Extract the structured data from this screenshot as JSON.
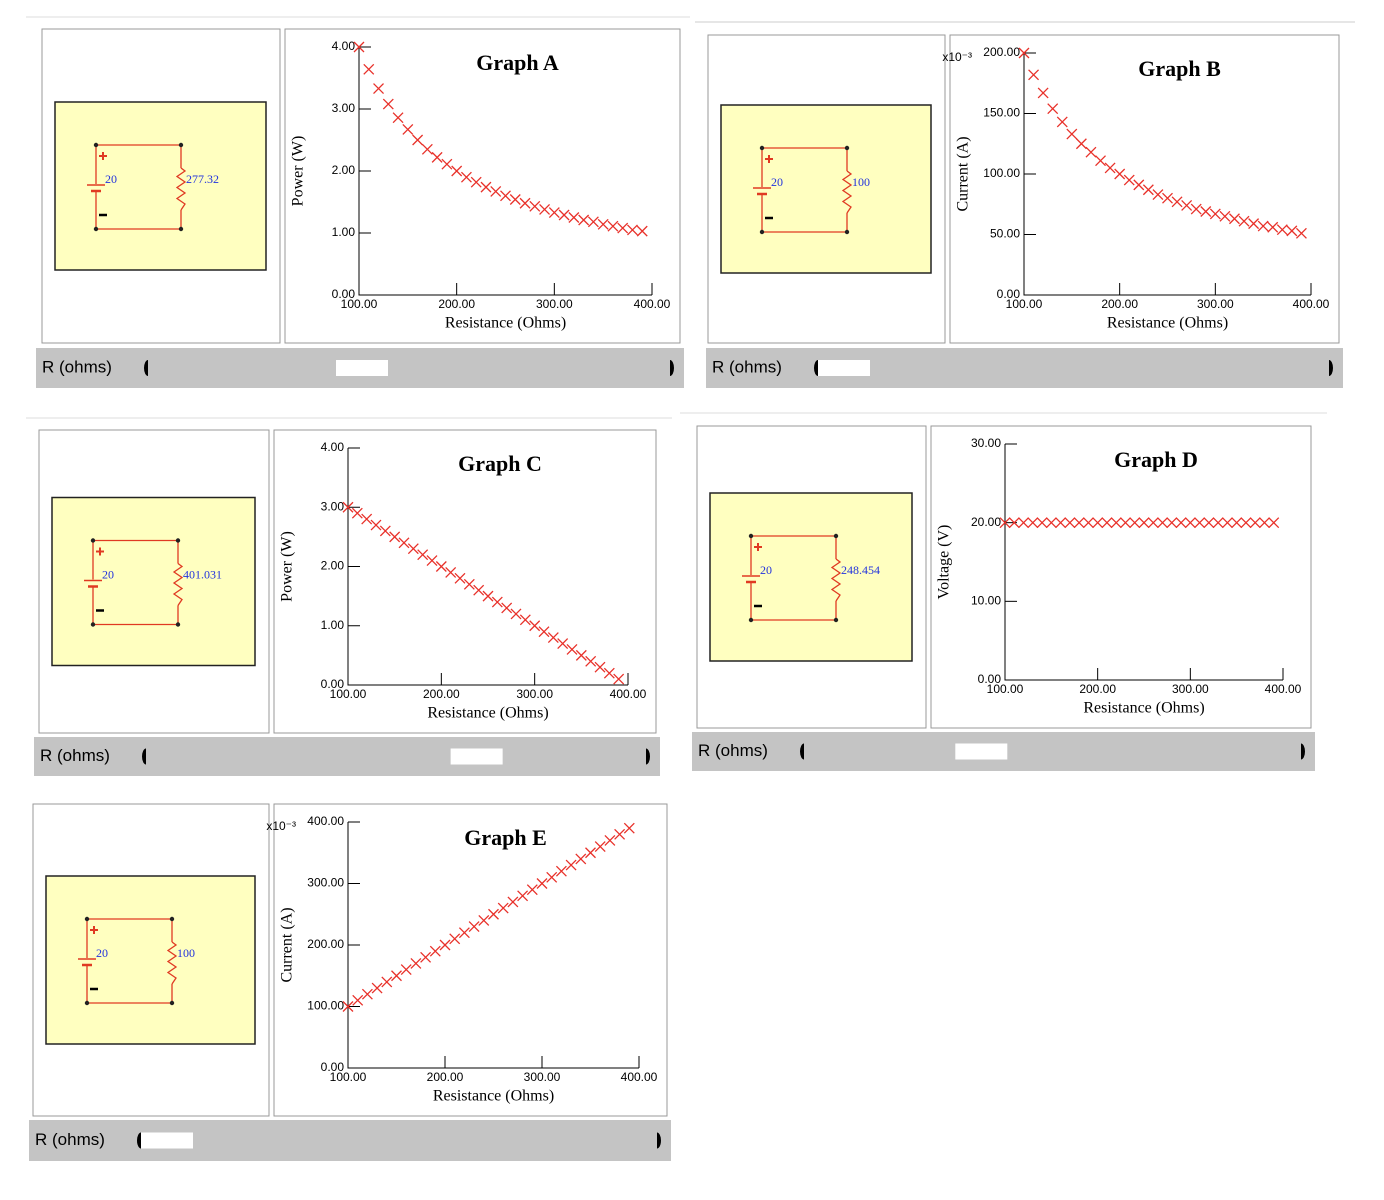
{
  "chart_data": [
    {
      "type": "scatter",
      "title": "Graph A",
      "xlabel": "Resistance (Ohms)",
      "ylabel": "Power (W)",
      "color": "#e8312a",
      "marker": "x",
      "xlim": [
        100,
        400
      ],
      "xticks": [
        {
          "value": 100,
          "label": "100.00"
        },
        {
          "value": 200,
          "label": "200.00"
        },
        {
          "value": 300,
          "label": "300.00"
        },
        {
          "value": 400,
          "label": "400.00"
        }
      ],
      "ylim": [
        0,
        4
      ],
      "yticks": [
        {
          "value": 0,
          "label": "0.00"
        },
        {
          "value": 1,
          "label": "1.00"
        },
        {
          "value": 2,
          "label": "2.00"
        },
        {
          "value": 3,
          "label": "3.00"
        },
        {
          "value": 4,
          "label": "4.00"
        }
      ],
      "x": [
        100,
        110,
        120,
        130,
        140,
        150,
        160,
        170,
        180,
        190,
        200,
        210,
        220,
        230,
        240,
        250,
        260,
        270,
        280,
        290,
        300,
        310,
        320,
        330,
        340,
        350,
        360,
        370,
        380,
        390
      ],
      "values": [
        4,
        3.64,
        3.33,
        3.08,
        2.86,
        2.67,
        2.5,
        2.35,
        2.22,
        2.11,
        2,
        1.9,
        1.82,
        1.74,
        1.67,
        1.6,
        1.54,
        1.48,
        1.43,
        1.38,
        1.33,
        1.29,
        1.25,
        1.21,
        1.18,
        1.14,
        1.11,
        1.08,
        1.05,
        1.03
      ]
    },
    {
      "type": "scatter",
      "title": "Graph B",
      "xlabel": "Resistance (Ohms)",
      "ylabel": "Current (A)",
      "y_multiplier": "x10⁻³",
      "color": "#e8312a",
      "marker": "x",
      "xlim": [
        100,
        400
      ],
      "xticks": [
        {
          "value": 100,
          "label": "100.00"
        },
        {
          "value": 200,
          "label": "200.00"
        },
        {
          "value": 300,
          "label": "300.00"
        },
        {
          "value": 400,
          "label": "400.00"
        }
      ],
      "ylim": [
        0,
        200
      ],
      "yticks": [
        {
          "value": 0,
          "label": "0.00"
        },
        {
          "value": 50,
          "label": "50.00"
        },
        {
          "value": 100,
          "label": "100.00"
        },
        {
          "value": 150,
          "label": "150.00"
        },
        {
          "value": 200,
          "label": "200.00"
        }
      ],
      "x": [
        100,
        110,
        120,
        130,
        140,
        150,
        160,
        170,
        180,
        190,
        200,
        210,
        220,
        230,
        240,
        250,
        260,
        270,
        280,
        290,
        300,
        310,
        320,
        330,
        340,
        350,
        360,
        370,
        380,
        390
      ],
      "values": [
        200,
        182,
        167,
        154,
        143,
        133,
        125,
        118,
        111,
        105,
        100,
        95,
        91,
        87,
        83,
        80,
        77,
        74,
        71,
        69,
        67,
        65,
        63,
        61,
        59,
        57,
        56,
        54,
        53,
        51
      ]
    },
    {
      "type": "scatter",
      "title": "Graph C",
      "xlabel": "Resistance (Ohms)",
      "ylabel": "Power (W)",
      "color": "#e8312a",
      "marker": "x",
      "xlim": [
        100,
        400
      ],
      "xticks": [
        {
          "value": 100,
          "label": "100.00"
        },
        {
          "value": 200,
          "label": "200.00"
        },
        {
          "value": 300,
          "label": "300.00"
        },
        {
          "value": 400,
          "label": "400.00"
        }
      ],
      "ylim": [
        0,
        4
      ],
      "yticks": [
        {
          "value": 0,
          "label": "0.00"
        },
        {
          "value": 1,
          "label": "1.00"
        },
        {
          "value": 2,
          "label": "2.00"
        },
        {
          "value": 3,
          "label": "3.00"
        },
        {
          "value": 4,
          "label": "4.00"
        }
      ],
      "x": [
        100,
        110,
        120,
        130,
        140,
        150,
        160,
        170,
        180,
        190,
        200,
        210,
        220,
        230,
        240,
        250,
        260,
        270,
        280,
        290,
        300,
        310,
        320,
        330,
        340,
        350,
        360,
        370,
        380,
        390
      ],
      "values": [
        3,
        2.9,
        2.8,
        2.7,
        2.6,
        2.5,
        2.4,
        2.3,
        2.2,
        2.1,
        2,
        1.9,
        1.8,
        1.7,
        1.6,
        1.5,
        1.4,
        1.3,
        1.2,
        1.1,
        1,
        0.9,
        0.8,
        0.7,
        0.6,
        0.5,
        0.4,
        0.3,
        0.2,
        0.1
      ]
    },
    {
      "type": "scatter",
      "title": "Graph D",
      "xlabel": "Resistance (Ohms)",
      "ylabel": "Voltage (V)",
      "color": "#e8312a",
      "marker": "x",
      "xlim": [
        100,
        400
      ],
      "xticks": [
        {
          "value": 100,
          "label": "100.00"
        },
        {
          "value": 200,
          "label": "200.00"
        },
        {
          "value": 300,
          "label": "300.00"
        },
        {
          "value": 400,
          "label": "400.00"
        }
      ],
      "ylim": [
        0,
        30
      ],
      "yticks": [
        {
          "value": 0,
          "label": "0.00"
        },
        {
          "value": 10,
          "label": "10.00"
        },
        {
          "value": 20,
          "label": "20.00"
        },
        {
          "value": 30,
          "label": "30.00"
        }
      ],
      "x": [
        100,
        110,
        120,
        130,
        140,
        150,
        160,
        170,
        180,
        190,
        200,
        210,
        220,
        230,
        240,
        250,
        260,
        270,
        280,
        290,
        300,
        310,
        320,
        330,
        340,
        350,
        360,
        370,
        380,
        390
      ],
      "values": [
        20,
        20,
        20,
        20,
        20,
        20,
        20,
        20,
        20,
        20,
        20,
        20,
        20,
        20,
        20,
        20,
        20,
        20,
        20,
        20,
        20,
        20,
        20,
        20,
        20,
        20,
        20,
        20,
        20,
        20
      ]
    },
    {
      "type": "scatter",
      "title": "Graph E",
      "xlabel": "Resistance (Ohms)",
      "ylabel": "Current (A)",
      "y_multiplier": "x10⁻³",
      "color": "#e8312a",
      "marker": "x",
      "xlim": [
        100,
        400
      ],
      "xticks": [
        {
          "value": 100,
          "label": "100.00"
        },
        {
          "value": 200,
          "label": "200.00"
        },
        {
          "value": 300,
          "label": "300.00"
        },
        {
          "value": 400,
          "label": "400.00"
        }
      ],
      "ylim": [
        0,
        400
      ],
      "yticks": [
        {
          "value": 0,
          "label": "0.00"
        },
        {
          "value": 100,
          "label": "100.00"
        },
        {
          "value": 200,
          "label": "200.00"
        },
        {
          "value": 300,
          "label": "300.00"
        },
        {
          "value": 400,
          "label": "400.00"
        }
      ],
      "x": [
        100,
        110,
        120,
        130,
        140,
        150,
        160,
        170,
        180,
        190,
        200,
        210,
        220,
        230,
        240,
        250,
        260,
        270,
        280,
        290,
        300,
        310,
        320,
        330,
        340,
        350,
        360,
        370,
        380,
        390
      ],
      "values": [
        100,
        110,
        120,
        130,
        140,
        150,
        160,
        170,
        180,
        190,
        200,
        210,
        220,
        230,
        240,
        250,
        260,
        270,
        280,
        290,
        300,
        310,
        320,
        330,
        340,
        350,
        360,
        370,
        380,
        390
      ]
    }
  ],
  "panels": [
    {
      "source": "20",
      "resistor": "277.32",
      "slider_label": "R (ohms)"
    },
    {
      "source": "20",
      "resistor": "100",
      "slider_label": "R (ohms)"
    },
    {
      "source": "20",
      "resistor": "401.031",
      "slider_label": "R (ohms)"
    },
    {
      "source": "20",
      "resistor": "248.454",
      "slider_label": "R (ohms)"
    },
    {
      "source": "20",
      "resistor": "100",
      "slider_label": "R (ohms)"
    }
  ]
}
